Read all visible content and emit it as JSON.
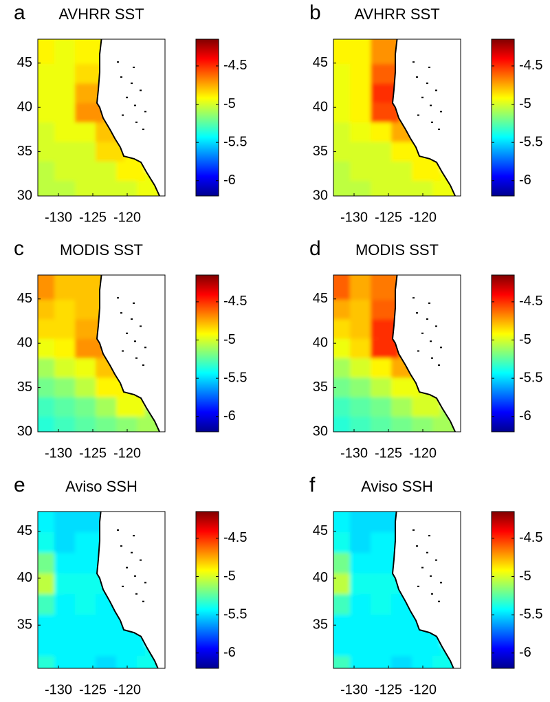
{
  "chart_data": [
    {
      "type": "heatmap",
      "panel": "a",
      "title": "AVHRR SST",
      "colormap": "jet",
      "x": [
        -131.5,
        -128.5,
        -125.5,
        -122.5,
        -119.5,
        -116.5
      ],
      "y": [
        31.1,
        33.3,
        35.5,
        37.7,
        39.9,
        42.1,
        44.3,
        46.5
      ],
      "values": [
        [
          -5.05,
          -5.05,
          -5.0,
          -5.0,
          -5.0,
          -4.95
        ],
        [
          -5.05,
          -5.0,
          -5.0,
          -5.0,
          -4.9,
          null
        ],
        [
          -5.0,
          -5.0,
          -5.0,
          -4.85,
          null,
          null
        ],
        [
          -5.0,
          -4.95,
          -4.95,
          -4.8,
          null,
          null
        ],
        [
          -4.95,
          -4.95,
          -4.7,
          null,
          null,
          null
        ],
        [
          -4.95,
          -4.95,
          -4.75,
          null,
          null,
          null
        ],
        [
          -4.95,
          -4.95,
          -4.85,
          null,
          null,
          null
        ],
        [
          -4.9,
          -4.95,
          -4.9,
          null,
          null,
          null
        ]
      ],
      "xlim": [
        -133,
        -114.5
      ],
      "xticks": [
        -130,
        -125,
        -120
      ],
      "ylim": [
        30,
        47.7
      ],
      "yticks": [
        30,
        35,
        40,
        45
      ],
      "clim": [
        -6.2,
        -4.15
      ],
      "cticks": [
        -6,
        -5.5,
        -5,
        -4.5
      ]
    },
    {
      "type": "heatmap",
      "panel": "b",
      "title": "AVHRR SST",
      "colormap": "jet",
      "x": [
        -131.5,
        -128.5,
        -125.5,
        -122.5,
        -119.5,
        -116.5
      ],
      "y": [
        31.1,
        33.3,
        35.5,
        37.7,
        39.9,
        42.1,
        44.3,
        46.5
      ],
      "values": [
        [
          -5.05,
          -5.05,
          -5.0,
          -5.0,
          -5.0,
          -4.95
        ],
        [
          -5.05,
          -5.0,
          -5.0,
          -5.0,
          -4.9,
          null
        ],
        [
          -5.0,
          -5.0,
          -5.0,
          -4.9,
          null,
          null
        ],
        [
          -5.0,
          -4.95,
          -4.9,
          -4.75,
          null,
          null
        ],
        [
          -4.95,
          -4.9,
          -4.55,
          null,
          null,
          null
        ],
        [
          -4.95,
          -4.9,
          -4.5,
          null,
          null,
          null
        ],
        [
          -4.95,
          -4.9,
          -4.6,
          null,
          null,
          null
        ],
        [
          -4.9,
          -4.9,
          -4.7,
          null,
          null,
          null
        ]
      ],
      "xlim": [
        -133,
        -114.5
      ],
      "xticks": [
        -130,
        -125,
        -120
      ],
      "ylim": [
        30,
        47.7
      ],
      "yticks": [
        30,
        35,
        40,
        45
      ],
      "clim": [
        -6.2,
        -4.15
      ],
      "cticks": [
        -6,
        -5.5,
        -5,
        -4.5
      ]
    },
    {
      "type": "heatmap",
      "panel": "c",
      "title": "MODIS SST",
      "colormap": "jet",
      "x": [
        -131.5,
        -128.5,
        -125.5,
        -122.5,
        -119.5,
        -116.5
      ],
      "y": [
        31.1,
        33.3,
        35.5,
        37.7,
        39.9,
        42.1,
        44.3,
        46.5
      ],
      "values": [
        [
          -5.35,
          -5.3,
          -5.25,
          -5.2,
          -5.15,
          -5.1
        ],
        [
          -5.3,
          -5.25,
          -5.2,
          -5.1,
          -4.95,
          null
        ],
        [
          -5.2,
          -5.15,
          -5.05,
          -4.9,
          null,
          null
        ],
        [
          -5.1,
          -5.0,
          -4.95,
          -4.8,
          null,
          null
        ],
        [
          -4.95,
          -4.9,
          -4.7,
          null,
          null,
          null
        ],
        [
          -4.85,
          -4.85,
          -4.75,
          null,
          null,
          null
        ],
        [
          -4.8,
          -4.85,
          -4.8,
          null,
          null,
          null
        ],
        [
          -4.7,
          -4.8,
          -4.8,
          null,
          null,
          null
        ]
      ],
      "xlim": [
        -133,
        -114.5
      ],
      "xticks": [
        -130,
        -125,
        -120
      ],
      "ylim": [
        30,
        47.7
      ],
      "yticks": [
        30,
        35,
        40,
        45
      ],
      "clim": [
        -6.2,
        -4.15
      ],
      "cticks": [
        -6,
        -5.5,
        -5,
        -4.5
      ]
    },
    {
      "type": "heatmap",
      "panel": "d",
      "title": "MODIS SST",
      "colormap": "jet",
      "x": [
        -131.5,
        -128.5,
        -125.5,
        -122.5,
        -119.5,
        -116.5
      ],
      "y": [
        31.1,
        33.3,
        35.5,
        37.7,
        39.9,
        42.1,
        44.3,
        46.5
      ],
      "values": [
        [
          -5.35,
          -5.3,
          -5.25,
          -5.2,
          -5.15,
          -5.1
        ],
        [
          -5.3,
          -5.25,
          -5.2,
          -5.1,
          -5.0,
          null
        ],
        [
          -5.2,
          -5.15,
          -5.05,
          -4.95,
          null,
          null
        ],
        [
          -5.1,
          -5.0,
          -4.9,
          -4.75,
          null,
          null
        ],
        [
          -4.95,
          -4.85,
          -4.5,
          null,
          null,
          null
        ],
        [
          -4.85,
          -4.8,
          -4.5,
          null,
          null,
          null
        ],
        [
          -4.75,
          -4.8,
          -4.6,
          null,
          null,
          null
        ],
        [
          -4.6,
          -4.75,
          -4.65,
          null,
          null,
          null
        ]
      ],
      "xlim": [
        -133,
        -114.5
      ],
      "xticks": [
        -130,
        -125,
        -120
      ],
      "ylim": [
        30,
        47.7
      ],
      "yticks": [
        30,
        35,
        40,
        45
      ],
      "clim": [
        -6.2,
        -4.15
      ],
      "cticks": [
        -6,
        -5.5,
        -5,
        -4.5
      ]
    },
    {
      "type": "heatmap",
      "panel": "e",
      "title": "Aviso SSH",
      "colormap": "jet",
      "x": [
        -131.5,
        -128.5,
        -125.5,
        -122.5,
        -119.5,
        -116.5
      ],
      "y": [
        31.1,
        33.3,
        35.5,
        37.7,
        39.9,
        42.1,
        44.3,
        46.5
      ],
      "values": [
        [
          -5.35,
          -5.45,
          -5.45,
          -5.5,
          -5.45,
          -5.4
        ],
        [
          -5.45,
          -5.45,
          -5.45,
          -5.45,
          -5.45,
          null
        ],
        [
          -5.45,
          -5.45,
          -5.45,
          -5.45,
          null,
          null
        ],
        [
          -5.3,
          -5.45,
          -5.4,
          -5.45,
          null,
          null
        ],
        [
          -5.05,
          -5.4,
          -5.4,
          null,
          null,
          null
        ],
        [
          -5.2,
          -5.45,
          -5.45,
          null,
          null,
          null
        ],
        [
          -5.4,
          -5.5,
          -5.45,
          null,
          null,
          null
        ],
        [
          -5.45,
          -5.5,
          -5.5,
          null,
          null,
          null
        ]
      ],
      "xlim": [
        -133,
        -114.5
      ],
      "xticks": [
        -130,
        -125,
        -120
      ],
      "ylim": [
        30.4,
        47.1
      ],
      "yticks": [
        35,
        40,
        45
      ],
      "clim": [
        -6.2,
        -4.15
      ],
      "cticks": [
        -6,
        -5.5,
        -5,
        -4.5
      ]
    },
    {
      "type": "heatmap",
      "panel": "f",
      "title": "Aviso SSH",
      "colormap": "jet",
      "x": [
        -131.5,
        -128.5,
        -125.5,
        -122.5,
        -119.5,
        -116.5
      ],
      "y": [
        31.1,
        33.3,
        35.5,
        37.7,
        39.9,
        42.1,
        44.3,
        46.5
      ],
      "values": [
        [
          -5.3,
          -5.45,
          -5.45,
          -5.5,
          -5.45,
          -5.4
        ],
        [
          -5.45,
          -5.45,
          -5.45,
          -5.45,
          -5.45,
          null
        ],
        [
          -5.45,
          -5.45,
          -5.45,
          -5.45,
          null,
          null
        ],
        [
          -5.3,
          -5.45,
          -5.4,
          -5.45,
          null,
          null
        ],
        [
          -5.05,
          -5.4,
          -5.4,
          null,
          null,
          null
        ],
        [
          -5.2,
          -5.45,
          -5.45,
          null,
          null,
          null
        ],
        [
          -5.4,
          -5.5,
          -5.45,
          null,
          null,
          null
        ],
        [
          -5.45,
          -5.5,
          -5.5,
          null,
          null,
          null
        ]
      ],
      "xlim": [
        -133,
        -114.5
      ],
      "xticks": [
        -130,
        -125,
        -120
      ],
      "ylim": [
        30.4,
        47.1
      ],
      "yticks": [
        35,
        40,
        45
      ],
      "clim": [
        -6.2,
        -4.15
      ],
      "cticks": [
        -6,
        -5.5,
        -5,
        -4.5
      ]
    }
  ]
}
